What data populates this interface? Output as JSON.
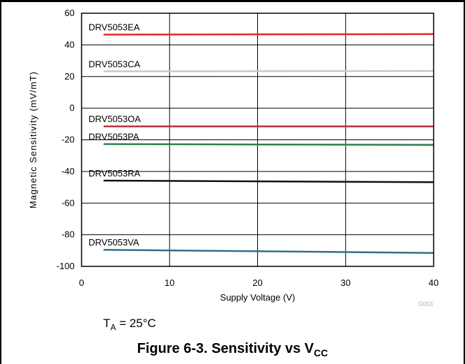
{
  "chart_data": {
    "type": "line",
    "xlabel": "Supply Voltage (V)",
    "ylabel": "Magnetic Sensitivity (mV/mT)",
    "xlim": [
      0,
      40
    ],
    "ylim": [
      -100,
      60
    ],
    "xticks": [
      "0",
      "10",
      "20",
      "30",
      "40"
    ],
    "yticks": [
      "60",
      "40",
      "20",
      "0",
      "-20",
      "-40",
      "-60",
      "-80",
      "-100"
    ],
    "grid": true,
    "watermark": "D001",
    "series": [
      {
        "name": "DRV5053EA",
        "color": "#e0262b",
        "x": [
          2.5,
          40
        ],
        "y": [
          46.5,
          46.8
        ]
      },
      {
        "name": "DRV5053CA",
        "color": "#c8c8c8",
        "x": [
          2.5,
          40
        ],
        "y": [
          23.3,
          23.5
        ]
      },
      {
        "name": "DRV5053OA",
        "color": "#b5323b",
        "x": [
          2.5,
          40
        ],
        "y": [
          -11.5,
          -11.5
        ]
      },
      {
        "name": "DRV5053PA",
        "color": "#2e7d4f",
        "x": [
          2.5,
          40
        ],
        "y": [
          -22.7,
          -23.2
        ]
      },
      {
        "name": "DRV5053RA",
        "color": "#111111",
        "x": [
          2.5,
          40
        ],
        "y": [
          -45.8,
          -46.8
        ]
      },
      {
        "name": "DRV5053VA",
        "color": "#2f6f8a",
        "x": [
          2.5,
          40
        ],
        "y": [
          -89.5,
          -91.5
        ]
      }
    ]
  },
  "note": {
    "prefix": "T",
    "sub": "A",
    "suffix": " = 25°C"
  },
  "caption": {
    "text": "Figure 6-3. Sensitivity vs V",
    "sub": "CC"
  }
}
